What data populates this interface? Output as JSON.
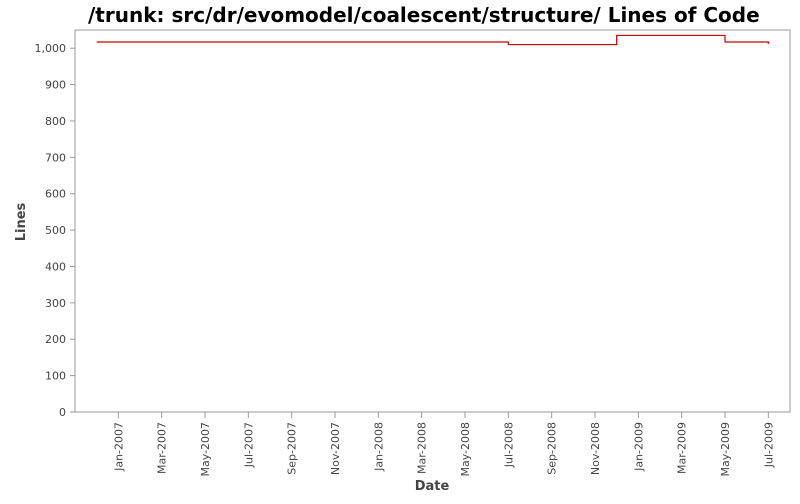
{
  "chart_data": {
    "type": "line",
    "title": "/trunk: src/dr/evomodel/coalescent/structure/ Lines of Code",
    "x_label": "Date",
    "y_label": "Lines",
    "x": [
      "2006-12",
      "2007-01",
      "2007-02",
      "2007-03",
      "2007-04",
      "2007-05",
      "2007-06",
      "2007-07",
      "2007-08",
      "2007-09",
      "2007-10",
      "2007-11",
      "2007-12",
      "2008-01",
      "2008-02",
      "2008-03",
      "2008-04",
      "2008-05",
      "2008-06",
      "2008-07",
      "2008-08",
      "2008-09",
      "2008-10",
      "2008-11",
      "2008-12",
      "2009-01",
      "2009-02",
      "2009-03",
      "2009-04",
      "2009-05",
      "2009-06",
      "2009-07"
    ],
    "series": [
      {
        "name": "Lines",
        "color": "#cc0000",
        "values": [
          1017,
          1017,
          1017,
          1017,
          1017,
          1017,
          1017,
          1017,
          1017,
          1017,
          1017,
          1017,
          1017,
          1017,
          1017,
          1017,
          1017,
          1017,
          1017,
          1010,
          1010,
          1010,
          1010,
          1010,
          1035,
          1035,
          1035,
          1035,
          1035,
          1017,
          1017,
          1012
        ]
      }
    ],
    "xlim": [
      "2006-11",
      "2009-08"
    ],
    "xticks": [
      {
        "value": "2007-01",
        "label": "Jan-2007"
      },
      {
        "value": "2007-03",
        "label": "Mar-2007"
      },
      {
        "value": "2007-05",
        "label": "May-2007"
      },
      {
        "value": "2007-07",
        "label": "Jul-2007"
      },
      {
        "value": "2007-09",
        "label": "Sep-2007"
      },
      {
        "value": "2007-11",
        "label": "Nov-2007"
      },
      {
        "value": "2008-01",
        "label": "Jan-2008"
      },
      {
        "value": "2008-03",
        "label": "Mar-2008"
      },
      {
        "value": "2008-05",
        "label": "May-2008"
      },
      {
        "value": "2008-07",
        "label": "Jul-2008"
      },
      {
        "value": "2008-09",
        "label": "Sep-2008"
      },
      {
        "value": "2008-11",
        "label": "Nov-2008"
      },
      {
        "value": "2009-01",
        "label": "Jan-2009"
      },
      {
        "value": "2009-03",
        "label": "Mar-2009"
      },
      {
        "value": "2009-05",
        "label": "May-2009"
      },
      {
        "value": "2009-07",
        "label": "Jul-2009"
      }
    ],
    "ylim": [
      0,
      1050
    ],
    "yticks": [
      0,
      100,
      200,
      300,
      400,
      500,
      600,
      700,
      800,
      900,
      {
        "value": 1000,
        "label": "1,000"
      }
    ],
    "step": true
  }
}
